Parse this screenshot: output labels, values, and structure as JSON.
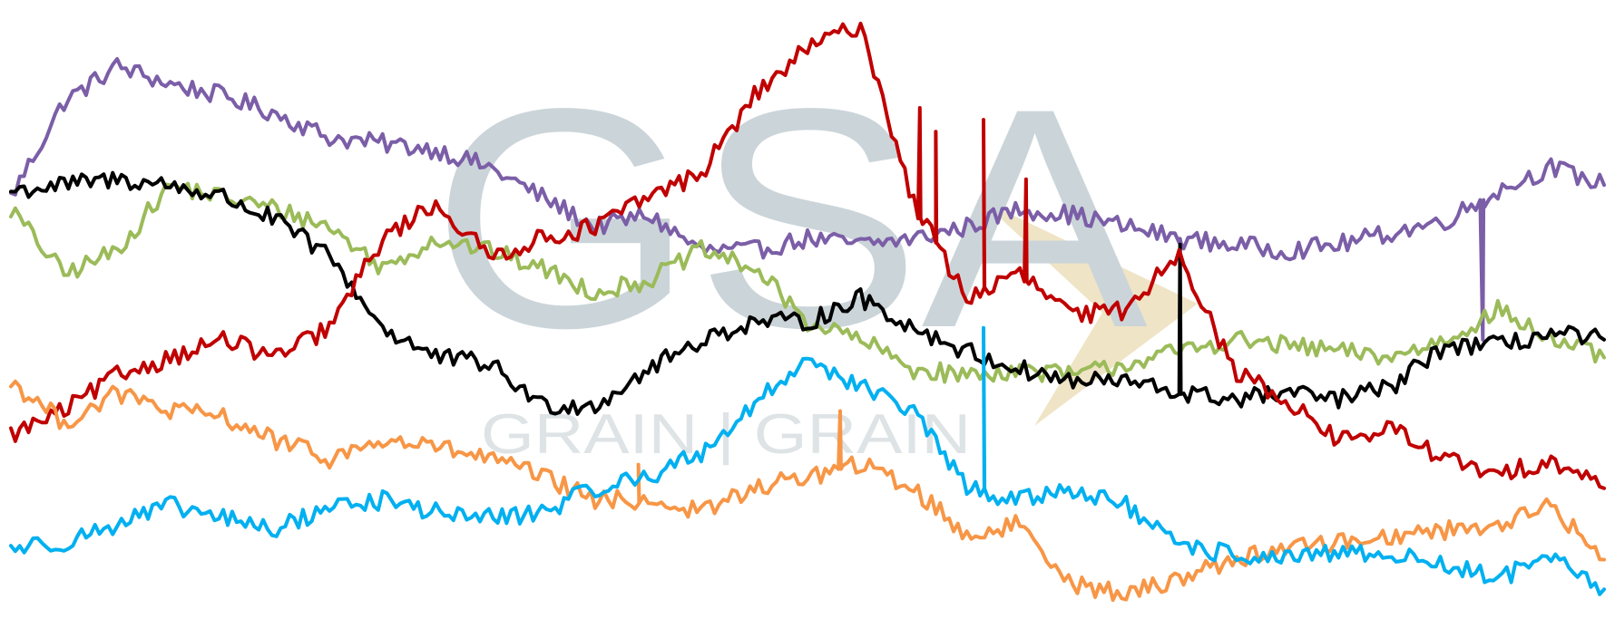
{
  "watermark": {
    "logo_letters": "GSA",
    "tagline": "GRAIN | GRAIN",
    "color_letters": "#c9d3d8",
    "color_arrow": "#efe3c4"
  },
  "chart_data": {
    "type": "line",
    "title": "",
    "xlabel": "",
    "ylabel": "",
    "x": [
      0,
      10,
      20,
      30,
      40,
      50,
      60,
      70,
      80,
      90,
      100,
      110,
      120,
      130,
      140,
      150,
      160,
      170,
      180,
      190,
      200,
      210,
      220,
      230,
      240,
      250,
      260,
      270,
      280,
      290,
      300
    ],
    "xlim": [
      0,
      300
    ],
    "ylim": [
      0,
      100
    ],
    "grid": false,
    "legend": "none",
    "series": [
      {
        "color": "#7b5ea7",
        "values": [
          69,
          85,
          91,
          88,
          86,
          83,
          79,
          78,
          77,
          74,
          69,
          64,
          66,
          60,
          60,
          62,
          61,
          62,
          64,
          67,
          66,
          64,
          62,
          61,
          60,
          61,
          63,
          65,
          70,
          74,
          71
        ],
        "spikes": [
          {
            "x": 220,
            "to": 62
          },
          {
            "x": 277,
            "to": 45
          }
        ]
      },
      {
        "color": "#9bbb59",
        "values": [
          67,
          56,
          60,
          71,
          69,
          67,
          64,
          57,
          62,
          60,
          57,
          53,
          55,
          60,
          57,
          48,
          45,
          40,
          39,
          40,
          39,
          41,
          43,
          45,
          44,
          43,
          42,
          45,
          50,
          45,
          42
        ]
      },
      {
        "color": "#000000",
        "values": [
          70,
          71,
          72,
          71,
          69,
          65,
          59,
          47,
          42,
          41,
          34,
          34,
          40,
          45,
          48,
          48,
          52,
          47,
          43,
          40,
          38,
          38,
          36,
          35,
          36,
          35,
          37,
          44,
          44,
          46,
          45
        ],
        "spikes": [
          {
            "x": 220,
            "to": 61
          }
        ]
      },
      {
        "color": "#c00000",
        "values": [
          29,
          33,
          39,
          42,
          45,
          42,
          47,
          62,
          68,
          59,
          62,
          64,
          69,
          73,
          86,
          94,
          98,
          68,
          52,
          56,
          49,
          50,
          60,
          40,
          35,
          28,
          30,
          25,
          22,
          25,
          20
        ],
        "spikes": [
          {
            "x": 171,
            "to": 84
          },
          {
            "x": 174,
            "to": 80
          },
          {
            "x": 183,
            "to": 82
          },
          {
            "x": 191,
            "to": 72
          }
        ]
      },
      {
        "color": "#f79646",
        "values": [
          38,
          31,
          36,
          33,
          32,
          28,
          25,
          28,
          27,
          25,
          22,
          18,
          18,
          16,
          20,
          22,
          24,
          20,
          12,
          14,
          4,
          2,
          5,
          8,
          10,
          11,
          12,
          13,
          14,
          17,
          8
        ],
        "spikes": [
          {
            "x": 156,
            "to": 33
          },
          {
            "x": 118,
            "to": 24
          }
        ]
      },
      {
        "color": "#00b0f0",
        "values": [
          10,
          11,
          14,
          17,
          15,
          13,
          17,
          18,
          16,
          15,
          16,
          20,
          22,
          26,
          34,
          42,
          37,
          33,
          20,
          18,
          20,
          17,
          10,
          9,
          8,
          9,
          9,
          7,
          5,
          8,
          3
        ],
        "spikes": [
          {
            "x": 183,
            "to": 47
          }
        ]
      }
    ]
  }
}
